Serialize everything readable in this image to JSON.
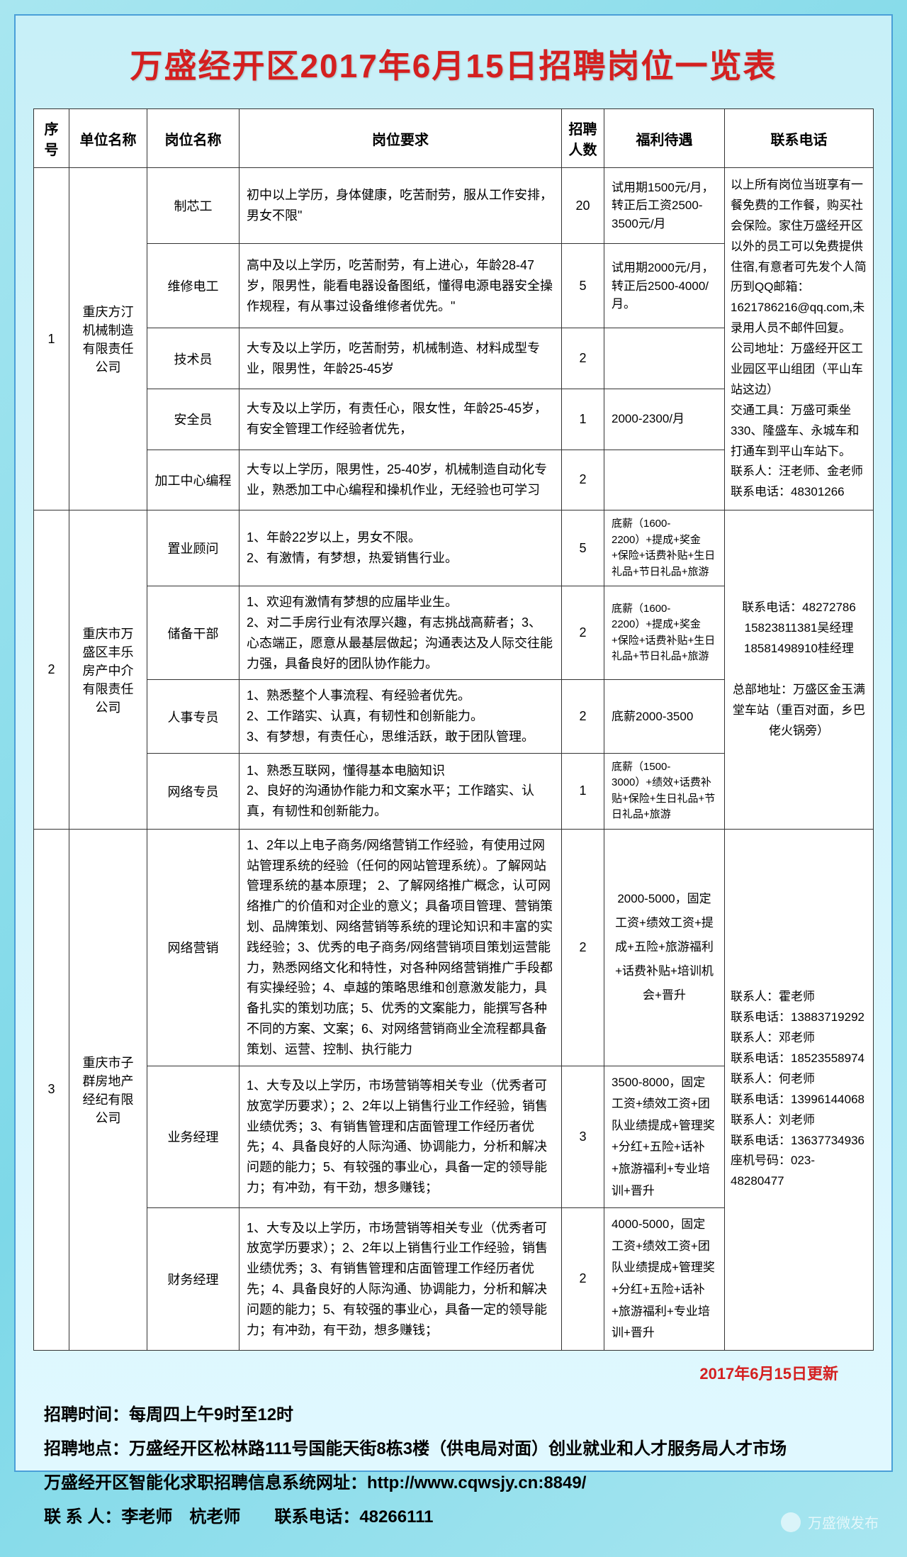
{
  "title": "万盛经开区2017年6月15日招聘岗位一览表",
  "headers": {
    "no": "序号",
    "company": "单位名称",
    "position": "岗位名称",
    "requirement": "岗位要求",
    "count": "招聘人数",
    "benefit": "福利待遇",
    "contact": "联系电话"
  },
  "rows": {
    "c1": {
      "no": "1",
      "company": "重庆方汀机械制造有限责任公司",
      "contact": "以上所有岗位当班享有一餐免费的工作餐，购买社会保险。家住万盛经开区以外的员工可以免费提供住宿,有意者可先发个人简历到QQ邮箱：1621786216@qq.com,未录用人员不邮件回复。\n公司地址：万盛经开区工业园区平山组团（平山车站这边）\n交通工具：万盛可乘坐330、隆盛车、永城车和打通车到平山车站下。\n联系人：汪老师、金老师　　联系电话：48301266",
      "p1": {
        "pos": "制芯工",
        "req": "初中以上学历，身体健康，吃苦耐劳，服从工作安排，男女不限\"",
        "count": "20",
        "benefit": "试用期1500元/月，转正后工资2500-3500元/月"
      },
      "p2": {
        "pos": "维修电工",
        "req": "高中及以上学历，吃苦耐劳，有上进心，年龄28-47岁，限男性，能看电器设备图纸，懂得电源电器安全操作规程，有从事过设备维修者优先。\"",
        "count": "5",
        "benefit": "试用期2000元/月，转正后2500-4000/月。"
      },
      "p3": {
        "pos": "技术员",
        "req": "大专及以上学历，吃苦耐劳，机械制造、材料成型专业，限男性，年龄25-45岁",
        "count": "2",
        "benefit": ""
      },
      "p4": {
        "pos": "安全员",
        "req": "大专及以上学历，有责任心，限女性，年龄25-45岁，有安全管理工作经验者优先，",
        "count": "1",
        "benefit": "2000-2300/月"
      },
      "p5": {
        "pos": "加工中心编程",
        "req": "大专以上学历，限男性，25-40岁，机械制造自动化专业，熟悉加工中心编程和操机作业，无经验也可学习",
        "count": "2",
        "benefit": ""
      }
    },
    "c2": {
      "no": "2",
      "company": "重庆市万盛区丰乐房产中介有限责任公司",
      "contact": "联系电话：48272786\n15823811381吴经理\n18581498910桂经理\n\n总部地址：万盛区金玉满堂车站（重百对面，乡巴佬火锅旁）",
      "p1": {
        "pos": "置业顾问",
        "req": "1、年龄22岁以上，男女不限。\n2、有激情，有梦想，热爱销售行业。",
        "count": "5",
        "benefit": "底薪（1600-2200）+提成+奖金+保险+话费补贴+生日礼品+节日礼品+旅游"
      },
      "p2": {
        "pos": "储备干部",
        "req": "1、欢迎有激情有梦想的应届毕业生。\n2、对二手房行业有浓厚兴趣，有志挑战高薪者；3、心态端正，愿意从最基层做起；沟通表达及人际交往能力强，具备良好的团队协作能力。",
        "count": "2",
        "benefit": "底薪（1600-2200）+提成+奖金+保险+话费补贴+生日礼品+节日礼品+旅游"
      },
      "p3": {
        "pos": "人事专员",
        "req": "1、熟悉整个人事流程、有经验者优先。\n2、工作踏实、认真，有韧性和创新能力。\n3、有梦想，有责任心，思维活跃，敢于团队管理。",
        "count": "2",
        "benefit": "底薪2000-3500"
      },
      "p4": {
        "pos": "网络专员",
        "req": "1、熟悉互联网，懂得基本电脑知识\n2、良好的沟通协作能力和文案水平；工作踏实、认真，有韧性和创新能力。",
        "count": "1",
        "benefit": "底薪（1500-3000）+绩效+话费补贴+保险+生日礼品+节日礼品+旅游"
      }
    },
    "c3": {
      "no": "3",
      "company": "重庆市子群房地产经纪有限公司",
      "contact": "联系人：霍老师\n联系电话：13883719292\n联系人：邓老师\n联系电话：18523558974\n联系人：何老师\n联系电话：13996144068\n联系人：刘老师\n联系电话：13637734936\n座机号码：023-48280477",
      "p1": {
        "pos": "网络营销",
        "req": "1、2年以上电子商务/网络营销工作经验，有使用过网站管理系统的经验（任何的网站管理系统）。了解网站管理系统的基本原理； 2、了解网络推广概念，认可网络推广的价值和对企业的意义；具备项目管理、营销策划、品牌策划、网络营销等系统的理论知识和丰富的实践经验；3、优秀的电子商务/网络营销项目策划运营能力，熟悉网络文化和特性，对各种网络营销推广手段都有实操经验；4、卓越的策略思维和创意激发能力，具备扎实的策划功底；5、优秀的文案能力，能撰写各种不同的方案、文案；6、对网络营销商业全流程都具备策划、运营、控制、执行能力",
        "count": "2",
        "benefit": "2000-5000，固定工资+绩效工资+提成+五险+旅游福利+话费补贴+培训机会+晋升"
      },
      "p2": {
        "pos": "业务经理",
        "req": "1、大专及以上学历，市场营销等相关专业（优秀者可放宽学历要求）；2、2年以上销售行业工作经验，销售业绩优秀；3、有销售管理和店面管理工作经历者优先；4、具备良好的人际沟通、协调能力，分析和解决问题的能力；5、有较强的事业心，具备一定的领导能力；有冲劲，有干劲，想多赚钱；",
        "count": "3",
        "benefit": "3500-8000，固定工资+绩效工资+团队业绩提成+管理奖+分红+五险+话补+旅游福利+专业培训+晋升"
      },
      "p3": {
        "pos": "财务经理",
        "req": "1、大专及以上学历，市场营销等相关专业（优秀者可放宽学历要求）；2、2年以上销售行业工作经验，销售业绩优秀；3、有销售管理和店面管理工作经历者优先；4、具备良好的人际沟通、协调能力，分析和解决问题的能力；5、有较强的事业心，具备一定的领导能力；有冲劲，有干劲，想多赚钱；",
        "count": "2",
        "benefit": "4000-5000，固定工资+绩效工资+团队业绩提成+管理奖+分红+五险+话补+旅游福利+专业培训+晋升"
      }
    }
  },
  "update": "2017年6月15日更新",
  "footer": {
    "l1": "招聘时间：每周四上午9时至12时",
    "l2": "招聘地点：万盛经开区松林路111号国能天街8栋3楼（供电局对面）创业就业和人才服务局人才市场",
    "l3": "万盛经开区智能化求职招聘信息系统网址：http://www.cqwsjy.cn:8849/",
    "l4": "联 系 人：李老师　杭老师　　联系电话：48266111"
  },
  "watermark": "万盛微发布"
}
